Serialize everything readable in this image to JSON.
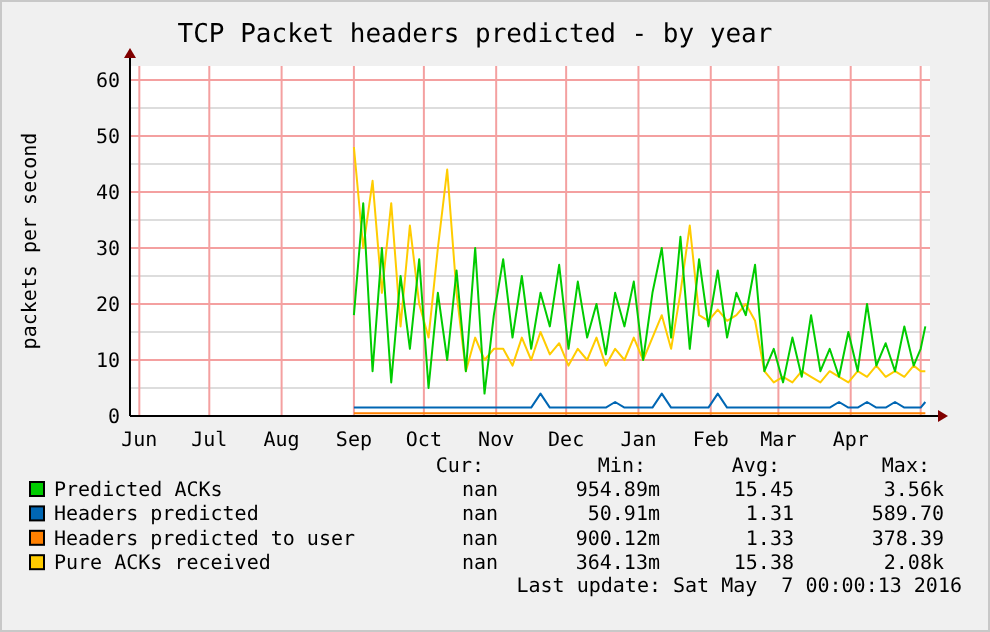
{
  "chart_data": {
    "type": "line",
    "title": "TCP Packet headers predicted - by year",
    "ylabel": "packets per second",
    "x": [
      "2015-09-01",
      "2015-09-05",
      "2015-09-09",
      "2015-09-13",
      "2015-09-17",
      "2015-09-21",
      "2015-09-25",
      "2015-09-29",
      "2015-10-03",
      "2015-10-07",
      "2015-10-11",
      "2015-10-15",
      "2015-10-19",
      "2015-10-23",
      "2015-10-27",
      "2015-10-31",
      "2015-11-04",
      "2015-11-08",
      "2015-11-12",
      "2015-11-16",
      "2015-11-20",
      "2015-11-24",
      "2015-11-28",
      "2015-12-02",
      "2015-12-06",
      "2015-12-10",
      "2015-12-14",
      "2015-12-18",
      "2015-12-22",
      "2015-12-26",
      "2015-12-30",
      "2016-01-03",
      "2016-01-07",
      "2016-01-11",
      "2016-01-15",
      "2016-01-19",
      "2016-01-23",
      "2016-01-27",
      "2016-01-31",
      "2016-02-04",
      "2016-02-08",
      "2016-02-12",
      "2016-02-16",
      "2016-02-20",
      "2016-02-24",
      "2016-02-28",
      "2016-03-03",
      "2016-03-07",
      "2016-03-11",
      "2016-03-15",
      "2016-03-19",
      "2016-03-23",
      "2016-03-27",
      "2016-03-31",
      "2016-04-04",
      "2016-04-08",
      "2016-04-12",
      "2016-04-16",
      "2016-04-20",
      "2016-04-24",
      "2016-04-28",
      "2016-05-01",
      "2016-05-03"
    ],
    "series": [
      {
        "name": "Predicted ACKs",
        "color": "#00cc00",
        "values": [
          18,
          38,
          8,
          30,
          6,
          25,
          12,
          28,
          5,
          22,
          10,
          26,
          8,
          30,
          4,
          18,
          28,
          14,
          25,
          12,
          22,
          16,
          27,
          12,
          24,
          14,
          20,
          11,
          22,
          16,
          24,
          10,
          22,
          30,
          14,
          32,
          12,
          28,
          16,
          26,
          14,
          22,
          18,
          27,
          8,
          12,
          6,
          14,
          7,
          18,
          8,
          12,
          7,
          15,
          8,
          20,
          9,
          13,
          8,
          16,
          9,
          12,
          16
        ]
      },
      {
        "name": "Headers predicted",
        "color": "#0066b3",
        "values": [
          1.5,
          1.5,
          1.5,
          1.5,
          1.5,
          1.5,
          1.5,
          1.5,
          1.5,
          1.5,
          1.5,
          1.5,
          1.5,
          1.5,
          1.5,
          1.5,
          1.5,
          1.5,
          1.5,
          1.5,
          4,
          1.5,
          1.5,
          1.5,
          1.5,
          1.5,
          1.5,
          1.5,
          2.5,
          1.5,
          1.5,
          1.5,
          1.5,
          4,
          1.5,
          1.5,
          1.5,
          1.5,
          1.5,
          4,
          1.5,
          1.5,
          1.5,
          1.5,
          1.5,
          1.5,
          1.5,
          1.5,
          1.5,
          1.5,
          1.5,
          1.5,
          2.5,
          1.5,
          1.5,
          2.5,
          1.5,
          1.5,
          2.5,
          1.5,
          1.5,
          1.5,
          2.5
        ]
      },
      {
        "name": "Headers predicted to user",
        "color": "#ff8000",
        "values": [
          0.5,
          0.5,
          0.5,
          0.5,
          0.5,
          0.5,
          0.5,
          0.5,
          0.5,
          0.5,
          0.5,
          0.5,
          0.5,
          0.5,
          0.5,
          0.5,
          0.5,
          0.5,
          0.5,
          0.5,
          0.5,
          0.5,
          0.5,
          0.5,
          0.5,
          0.5,
          0.5,
          0.5,
          0.5,
          0.5,
          0.5,
          0.5,
          0.5,
          0.5,
          0.5,
          0.5,
          0.5,
          0.5,
          0.5,
          0.5,
          0.5,
          0.5,
          0.5,
          0.5,
          0.5,
          0.5,
          0.5,
          0.5,
          0.5,
          0.5,
          0.5,
          0.5,
          0.5,
          0.5,
          0.5,
          0.5,
          0.5,
          0.5,
          0.5,
          0.5,
          0.5,
          0.5,
          0.5
        ]
      },
      {
        "name": "Pure ACKs received",
        "color": "#ffcc00",
        "values": [
          48,
          30,
          42,
          22,
          38,
          16,
          34,
          20,
          14,
          30,
          44,
          22,
          8,
          14,
          10,
          12,
          12,
          9,
          14,
          10,
          15,
          11,
          13,
          9,
          12,
          10,
          14,
          9,
          12,
          10,
          14,
          10,
          14,
          18,
          12,
          22,
          34,
          18,
          17,
          19,
          17,
          18,
          20,
          17,
          8,
          6,
          7,
          6,
          8,
          7,
          6,
          8,
          7,
          6,
          8,
          7,
          9,
          7,
          8,
          7,
          9,
          8,
          8
        ]
      }
    ],
    "xlim": [
      "2015-05-28",
      "2016-05-05"
    ],
    "xticks": [
      {
        "value": "2015-06-01",
        "label": "Jun"
      },
      {
        "value": "2015-07-01",
        "label": "Jul"
      },
      {
        "value": "2015-08-01",
        "label": "Aug"
      },
      {
        "value": "2015-09-01",
        "label": "Sep"
      },
      {
        "value": "2015-10-01",
        "label": "Oct"
      },
      {
        "value": "2015-11-01",
        "label": "Nov"
      },
      {
        "value": "2015-12-01",
        "label": "Dec"
      },
      {
        "value": "2016-01-01",
        "label": "Jan"
      },
      {
        "value": "2016-02-01",
        "label": "Feb"
      },
      {
        "value": "2016-03-01",
        "label": "Mar"
      },
      {
        "value": "2016-04-01",
        "label": "Apr"
      },
      {
        "value": "2016-05-01",
        "label": null
      }
    ],
    "ylim": [
      0,
      62.5
    ],
    "yticks": [
      0,
      {
        "value": 5,
        "label": null
      },
      10,
      {
        "value": 15,
        "label": null
      },
      20,
      {
        "value": 25,
        "label": null
      },
      30,
      {
        "value": 35,
        "label": null
      },
      40,
      {
        "value": 45,
        "label": null
      },
      50,
      {
        "value": 55,
        "label": null
      },
      60
    ],
    "grid": true,
    "legend": "bottom",
    "marker": "none",
    "line_style": "solid",
    "annotations": [
      "Cur:",
      "Min:",
      "Avg:",
      "Max:",
      "nan",
      "954.89m",
      "15.45",
      "3.56k",
      "nan",
      "50.91m",
      "1.31",
      "589.70",
      "nan",
      "900.12m",
      "1.33",
      "378.39",
      "nan",
      "364.13m",
      "15.38",
      "2.08k",
      "Last update: Sat May  7 00:00:13 2016"
    ]
  }
}
